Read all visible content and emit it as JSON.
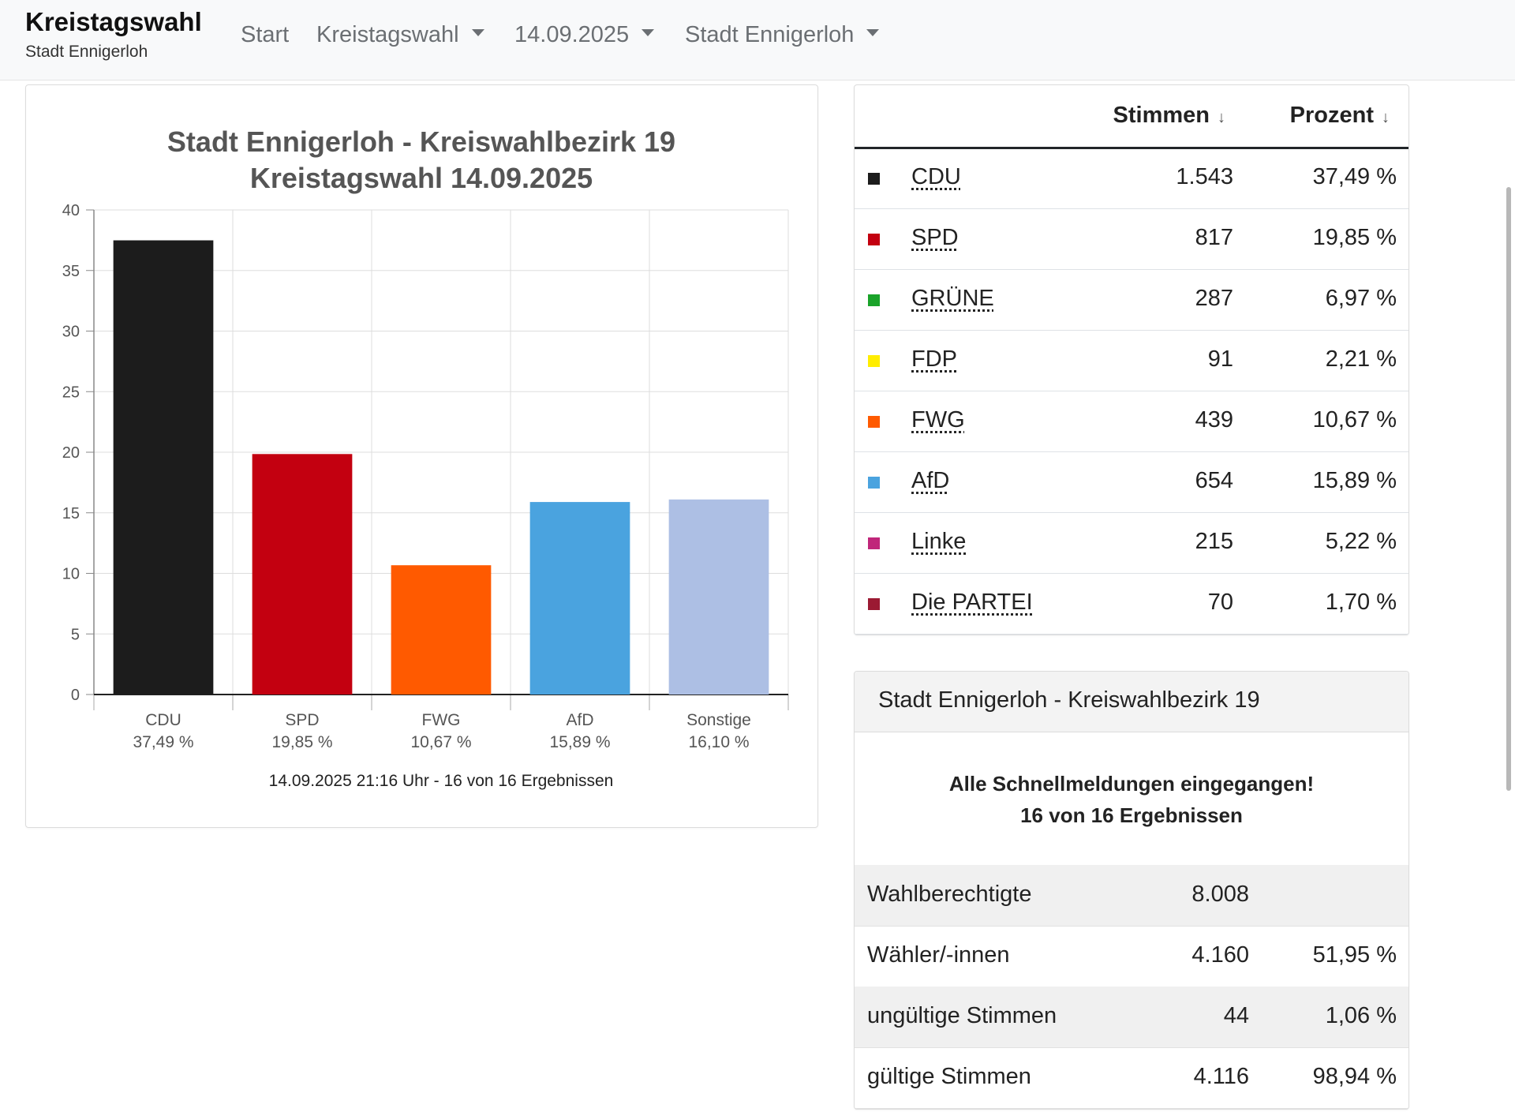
{
  "navbar": {
    "brand_title": "Kreistagswahl",
    "brand_subtitle": "Stadt Ennigerloh",
    "items": [
      {
        "label": "Start",
        "dropdown": false
      },
      {
        "label": "Kreistagswahl",
        "dropdown": true
      },
      {
        "label": "14.09.2025",
        "dropdown": true
      },
      {
        "label": "Stadt Ennigerloh",
        "dropdown": true
      }
    ]
  },
  "chart_data": {
    "type": "bar",
    "title": "Stadt Ennigerloh - Kreiswahlbezirk 19",
    "subtitle": "Kreistagswahl 14.09.2025",
    "categories": [
      "CDU",
      "SPD",
      "FWG",
      "AfD",
      "Sonstige"
    ],
    "category_sublabels": [
      "37,49 %",
      "19,85 %",
      "10,67 %",
      "15,89 %",
      "16,10 %"
    ],
    "values": [
      37.49,
      19.85,
      10.67,
      15.89,
      16.1
    ],
    "colors": [
      "#1c1c1c",
      "#c30010",
      "#ff5a00",
      "#4aa3df",
      "#adbfe4"
    ],
    "ylim": [
      0,
      40
    ],
    "yticks": [
      "0",
      "5",
      "10",
      "15",
      "20",
      "25",
      "30",
      "35",
      "40"
    ],
    "grid": true,
    "footer": "14.09.2025 21:16 Uhr - 16 von 16 Ergebnissen"
  },
  "results": {
    "col_votes": "Stimmen",
    "col_percent": "Prozent",
    "sort_icon": "↓",
    "rows": [
      {
        "party": "CDU",
        "votes": "1.543",
        "percent": "37,49 %",
        "color": "#1c1c1c"
      },
      {
        "party": "SPD",
        "votes": "817",
        "percent": "19,85 %",
        "color": "#c30010"
      },
      {
        "party": "GRÜNE",
        "votes": "287",
        "percent": "6,97 %",
        "color": "#1aa32a"
      },
      {
        "party": "FDP",
        "votes": "91",
        "percent": "2,21 %",
        "color": "#ffed00"
      },
      {
        "party": "FWG",
        "votes": "439",
        "percent": "10,67 %",
        "color": "#ff5a00"
      },
      {
        "party": "AfD",
        "votes": "654",
        "percent": "15,89 %",
        "color": "#4aa3df"
      },
      {
        "party": "Linke",
        "votes": "215",
        "percent": "5,22 %",
        "color": "#c0267a"
      },
      {
        "party": "Die PARTEI",
        "votes": "70",
        "percent": "1,70 %",
        "color": "#9b1a33"
      }
    ]
  },
  "summary": {
    "title": "Stadt Ennigerloh - Kreiswahlbezirk 19",
    "message_line1": "Alle Schnellmeldungen eingegangen!",
    "message_line2": "16 von 16 Ergebnissen",
    "rows": [
      {
        "label": "Wahlberechtigte",
        "value": "8.008",
        "percent": ""
      },
      {
        "label": "Wähler/-innen",
        "value": "4.160",
        "percent": "51,95 %"
      },
      {
        "label": "ungültige Stimmen",
        "value": "44",
        "percent": "1,06 %"
      },
      {
        "label": "gültige Stimmen",
        "value": "4.116",
        "percent": "98,94 %"
      }
    ]
  }
}
